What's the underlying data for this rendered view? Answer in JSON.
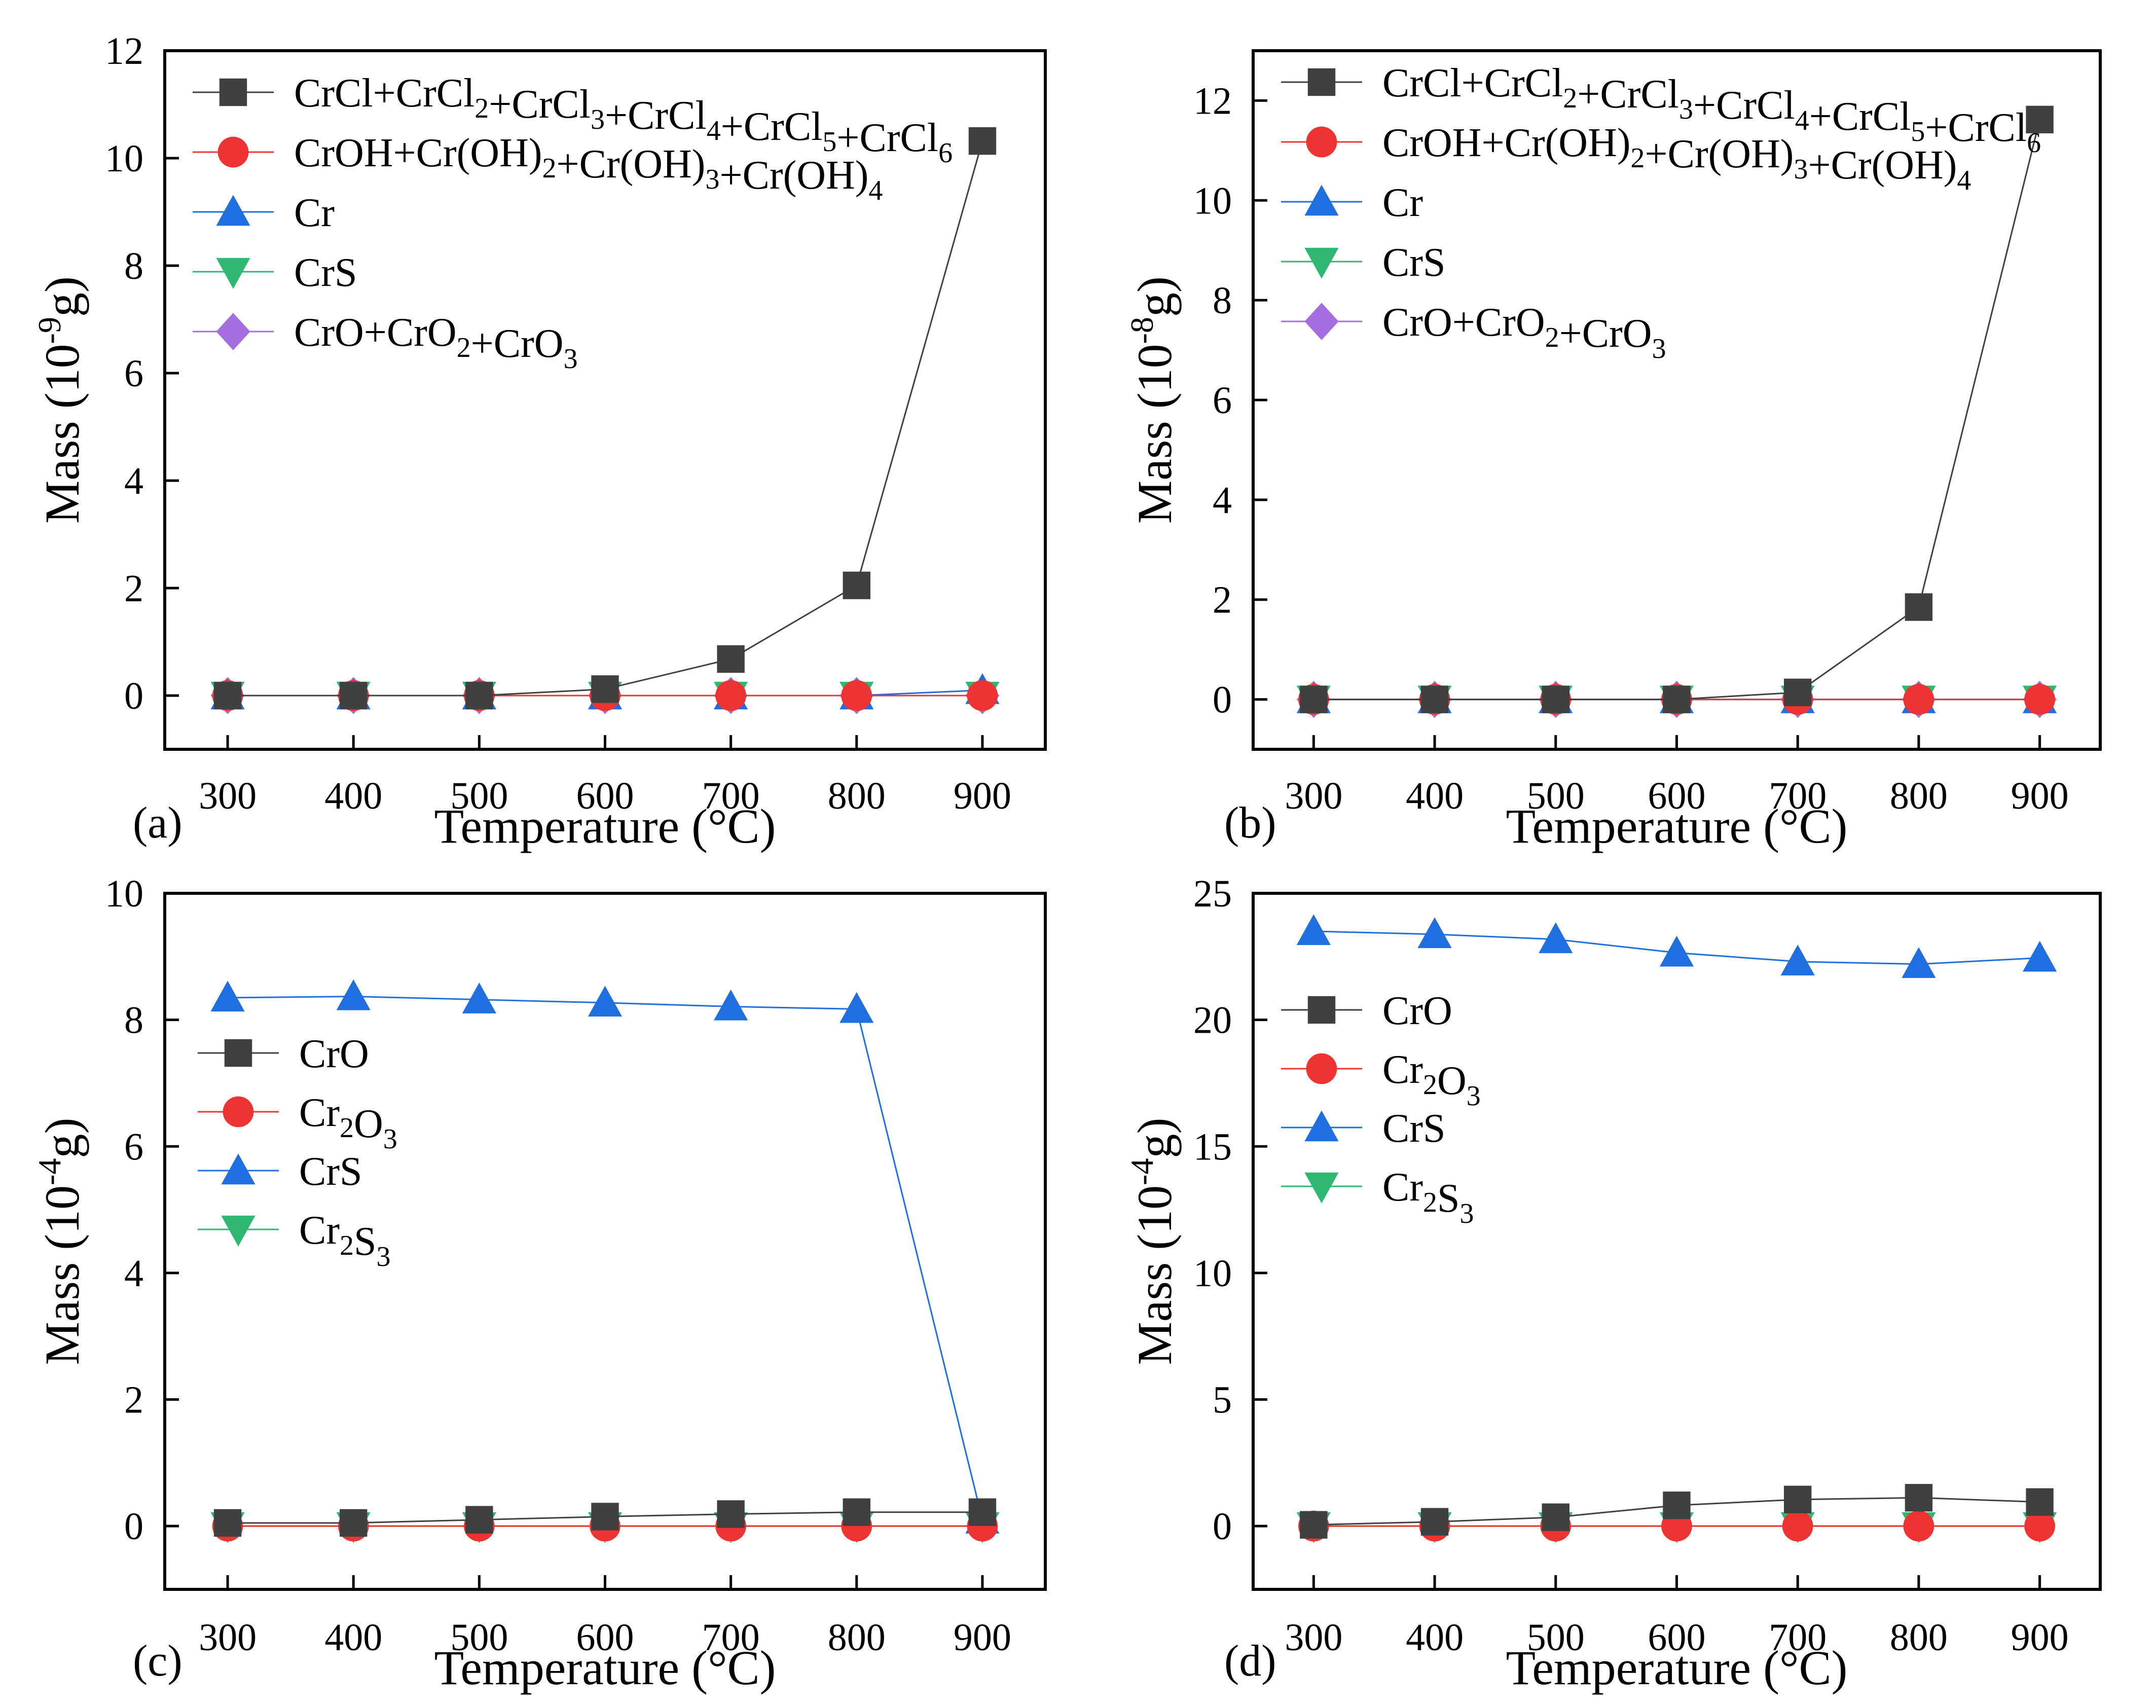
{
  "figure": {
    "panels": [
      {
        "id": "a",
        "panel_label": "(a)",
        "ylabel": {
          "base": "Mass (10",
          "exp": "-9",
          "unit": "g)"
        },
        "xlabel": "Temperature (°C)",
        "legend": [
          {
            "parts": [
              [
                "CrCl+CrCl",
                "",
                "2"
              ],
              [
                "+CrCl",
                "",
                "3"
              ],
              [
                "+CrCl",
                "",
                "4"
              ],
              [
                "+CrCl",
                "",
                "5"
              ],
              [
                "+CrCl",
                "",
                "6"
              ]
            ]
          },
          {
            "parts": [
              [
                "CrOH+Cr(OH)",
                "",
                "2"
              ],
              [
                "+Cr(OH)",
                "",
                "3"
              ],
              [
                "+Cr(OH)",
                "",
                "4"
              ]
            ]
          },
          {
            "parts": [
              [
                "Cr",
                "",
                ""
              ]
            ]
          },
          {
            "parts": [
              [
                "CrS",
                "",
                ""
              ]
            ]
          },
          {
            "parts": [
              [
                "CrO+CrO",
                "",
                "2"
              ],
              [
                "+CrO",
                "",
                "3"
              ]
            ]
          }
        ]
      },
      {
        "id": "b",
        "panel_label": "(b)",
        "ylabel": {
          "base": "Mass (10",
          "exp": "-8",
          "unit": "g)"
        },
        "xlabel": "Temperature (°C)",
        "legend": [
          {
            "parts": [
              [
                "CrCl+CrCl",
                "",
                "2"
              ],
              [
                "+CrCl",
                "",
                "3"
              ],
              [
                "+CrCl",
                "",
                "4"
              ],
              [
                "+CrCl",
                "",
                "5"
              ],
              [
                "+CrCl",
                "",
                "6"
              ]
            ]
          },
          {
            "parts": [
              [
                "CrOH+Cr(OH)",
                "",
                "2"
              ],
              [
                "+Cr(OH)",
                "",
                "3"
              ],
              [
                "+Cr(OH)",
                "",
                "4"
              ]
            ]
          },
          {
            "parts": [
              [
                "Cr",
                "",
                ""
              ]
            ]
          },
          {
            "parts": [
              [
                "CrS",
                "",
                ""
              ]
            ]
          },
          {
            "parts": [
              [
                "CrO+CrO",
                "",
                "2"
              ],
              [
                "+CrO",
                "",
                "3"
              ]
            ]
          }
        ]
      },
      {
        "id": "c",
        "panel_label": "(c)",
        "ylabel": {
          "base": "Mass (10",
          "exp": "-4",
          "unit": "g)"
        },
        "xlabel": "Temperature (°C)",
        "legend": [
          {
            "parts": [
              [
                "CrO",
                "",
                ""
              ]
            ]
          },
          {
            "parts": [
              [
                "Cr",
                "",
                "2"
              ],
              [
                "O",
                "",
                "3"
              ]
            ]
          },
          {
            "parts": [
              [
                "CrS",
                "",
                ""
              ]
            ]
          },
          {
            "parts": [
              [
                "Cr",
                "",
                "2"
              ],
              [
                "S",
                "",
                "3"
              ]
            ]
          }
        ]
      },
      {
        "id": "d",
        "panel_label": "(d)",
        "ylabel": {
          "base": "Mass (10",
          "exp": "-4",
          "unit": "g)"
        },
        "xlabel": "Temperature (°C)",
        "legend": [
          {
            "parts": [
              [
                "CrO",
                "",
                ""
              ]
            ]
          },
          {
            "parts": [
              [
                "Cr",
                "",
                "2"
              ],
              [
                "O",
                "",
                "3"
              ]
            ]
          },
          {
            "parts": [
              [
                "CrS",
                "",
                ""
              ]
            ]
          },
          {
            "parts": [
              [
                "Cr",
                "",
                "2"
              ],
              [
                "S",
                "",
                "3"
              ]
            ]
          }
        ]
      }
    ]
  },
  "chart_data": [
    {
      "type": "line",
      "panel": "(a)",
      "xlabel": "Temperature (°C)",
      "ylabel": "Mass (10^-9 g)",
      "x": [
        300,
        400,
        500,
        600,
        700,
        800,
        900
      ],
      "xlim": [
        250,
        950
      ],
      "ylim": [
        -1,
        12
      ],
      "xticks": [
        300,
        400,
        500,
        600,
        700,
        800,
        900
      ],
      "yticks": [
        0,
        2,
        4,
        6,
        8,
        10,
        12
      ],
      "legend_position": "top-left",
      "series": [
        {
          "name": "CrCl+CrCl2+CrCl3+CrCl4+CrCl5+CrCl6",
          "marker": "square",
          "color": "#404040",
          "values": [
            0,
            0,
            0,
            0.12,
            0.68,
            2.05,
            10.32
          ]
        },
        {
          "name": "CrOH+Cr(OH)2+Cr(OH)3+Cr(OH)4",
          "marker": "circle",
          "color": "#ee3333",
          "values": [
            0,
            0,
            0,
            0,
            0,
            0,
            0
          ]
        },
        {
          "name": "Cr",
          "marker": "triangle-up",
          "color": "#1f6fe0",
          "values": [
            0,
            0,
            0,
            0,
            0,
            0,
            0.1
          ]
        },
        {
          "name": "CrS",
          "marker": "triangle-down",
          "color": "#2eb872",
          "values": [
            0,
            0,
            0,
            0,
            0,
            0,
            0
          ]
        },
        {
          "name": "CrO+CrO2+CrO3",
          "marker": "diamond",
          "color": "#a46ee0",
          "values": [
            0,
            0,
            0,
            0,
            0,
            0,
            0
          ]
        }
      ]
    },
    {
      "type": "line",
      "panel": "(b)",
      "xlabel": "Temperature (°C)",
      "ylabel": "Mass (10^-8 g)",
      "x": [
        300,
        400,
        500,
        600,
        700,
        800,
        900
      ],
      "xlim": [
        250,
        950
      ],
      "ylim": [
        -1,
        13
      ],
      "xticks": [
        300,
        400,
        500,
        600,
        700,
        800,
        900
      ],
      "yticks": [
        0,
        2,
        4,
        6,
        8,
        10,
        12
      ],
      "legend_position": "top-left",
      "series": [
        {
          "name": "CrCl+CrCl2+CrCl3+CrCl4+CrCl5+CrCl6",
          "marker": "square",
          "color": "#404040",
          "values": [
            0,
            0,
            0,
            0,
            0.14,
            1.85,
            11.62
          ]
        },
        {
          "name": "CrOH+Cr(OH)2+Cr(OH)3+Cr(OH)4",
          "marker": "circle",
          "color": "#ee3333",
          "values": [
            0,
            0,
            0,
            0,
            0,
            0,
            0
          ]
        },
        {
          "name": "Cr",
          "marker": "triangle-up",
          "color": "#1f6fe0",
          "values": [
            0,
            0,
            0,
            0,
            0,
            0,
            0
          ]
        },
        {
          "name": "CrS",
          "marker": "triangle-down",
          "color": "#2eb872",
          "values": [
            0,
            0,
            0,
            0,
            0,
            0,
            0
          ]
        },
        {
          "name": "CrO+CrO2+CrO3",
          "marker": "diamond",
          "color": "#a46ee0",
          "values": [
            0,
            0,
            0,
            0,
            0,
            0,
            0
          ]
        }
      ]
    },
    {
      "type": "line",
      "panel": "(c)",
      "xlabel": "Temperature (°C)",
      "ylabel": "Mass (10^-4 g)",
      "x": [
        300,
        400,
        500,
        600,
        700,
        800,
        900
      ],
      "xlim": [
        250,
        950
      ],
      "ylim": [
        -1,
        10
      ],
      "xticks": [
        300,
        400,
        500,
        600,
        700,
        800,
        900
      ],
      "yticks": [
        0,
        2,
        4,
        6,
        8,
        10
      ],
      "legend_position": "middle-left",
      "series": [
        {
          "name": "CrO",
          "marker": "square",
          "color": "#404040",
          "values": [
            0.05,
            0.05,
            0.1,
            0.15,
            0.19,
            0.22,
            0.22
          ]
        },
        {
          "name": "Cr2O3",
          "marker": "circle",
          "color": "#ee3333",
          "values": [
            0,
            0,
            0,
            0,
            0,
            0,
            0
          ]
        },
        {
          "name": "CrS",
          "marker": "triangle-up",
          "color": "#1f6fe0",
          "values": [
            8.35,
            8.37,
            8.32,
            8.27,
            8.21,
            8.17,
            0.1
          ]
        },
        {
          "name": "Cr2S3",
          "marker": "triangle-down",
          "color": "#2eb872",
          "values": [
            0,
            0,
            0,
            0,
            0,
            0,
            0
          ]
        }
      ]
    },
    {
      "type": "line",
      "panel": "(d)",
      "xlabel": "Temperature (°C)",
      "ylabel": "Mass (10^-4 g)",
      "x": [
        300,
        400,
        500,
        600,
        700,
        800,
        900
      ],
      "xlim": [
        250,
        950
      ],
      "ylim": [
        -2.5,
        25
      ],
      "xticks": [
        300,
        400,
        500,
        600,
        700,
        800,
        900
      ],
      "yticks": [
        0,
        5,
        10,
        15,
        20,
        25
      ],
      "legend_position": "upper-left",
      "series": [
        {
          "name": "CrO",
          "marker": "square",
          "color": "#404040",
          "values": [
            0.05,
            0.17,
            0.35,
            0.82,
            1.05,
            1.12,
            0.95
          ]
        },
        {
          "name": "Cr2O3",
          "marker": "circle",
          "color": "#ee3333",
          "values": [
            0,
            0,
            0,
            0,
            0,
            0,
            0
          ]
        },
        {
          "name": "CrS",
          "marker": "triangle-up",
          "color": "#1f6fe0",
          "values": [
            23.5,
            23.38,
            23.18,
            22.65,
            22.3,
            22.2,
            22.45
          ]
        },
        {
          "name": "Cr2S3",
          "marker": "triangle-down",
          "color": "#2eb872",
          "values": [
            0,
            0,
            0,
            0,
            0,
            0,
            0
          ]
        }
      ]
    }
  ]
}
